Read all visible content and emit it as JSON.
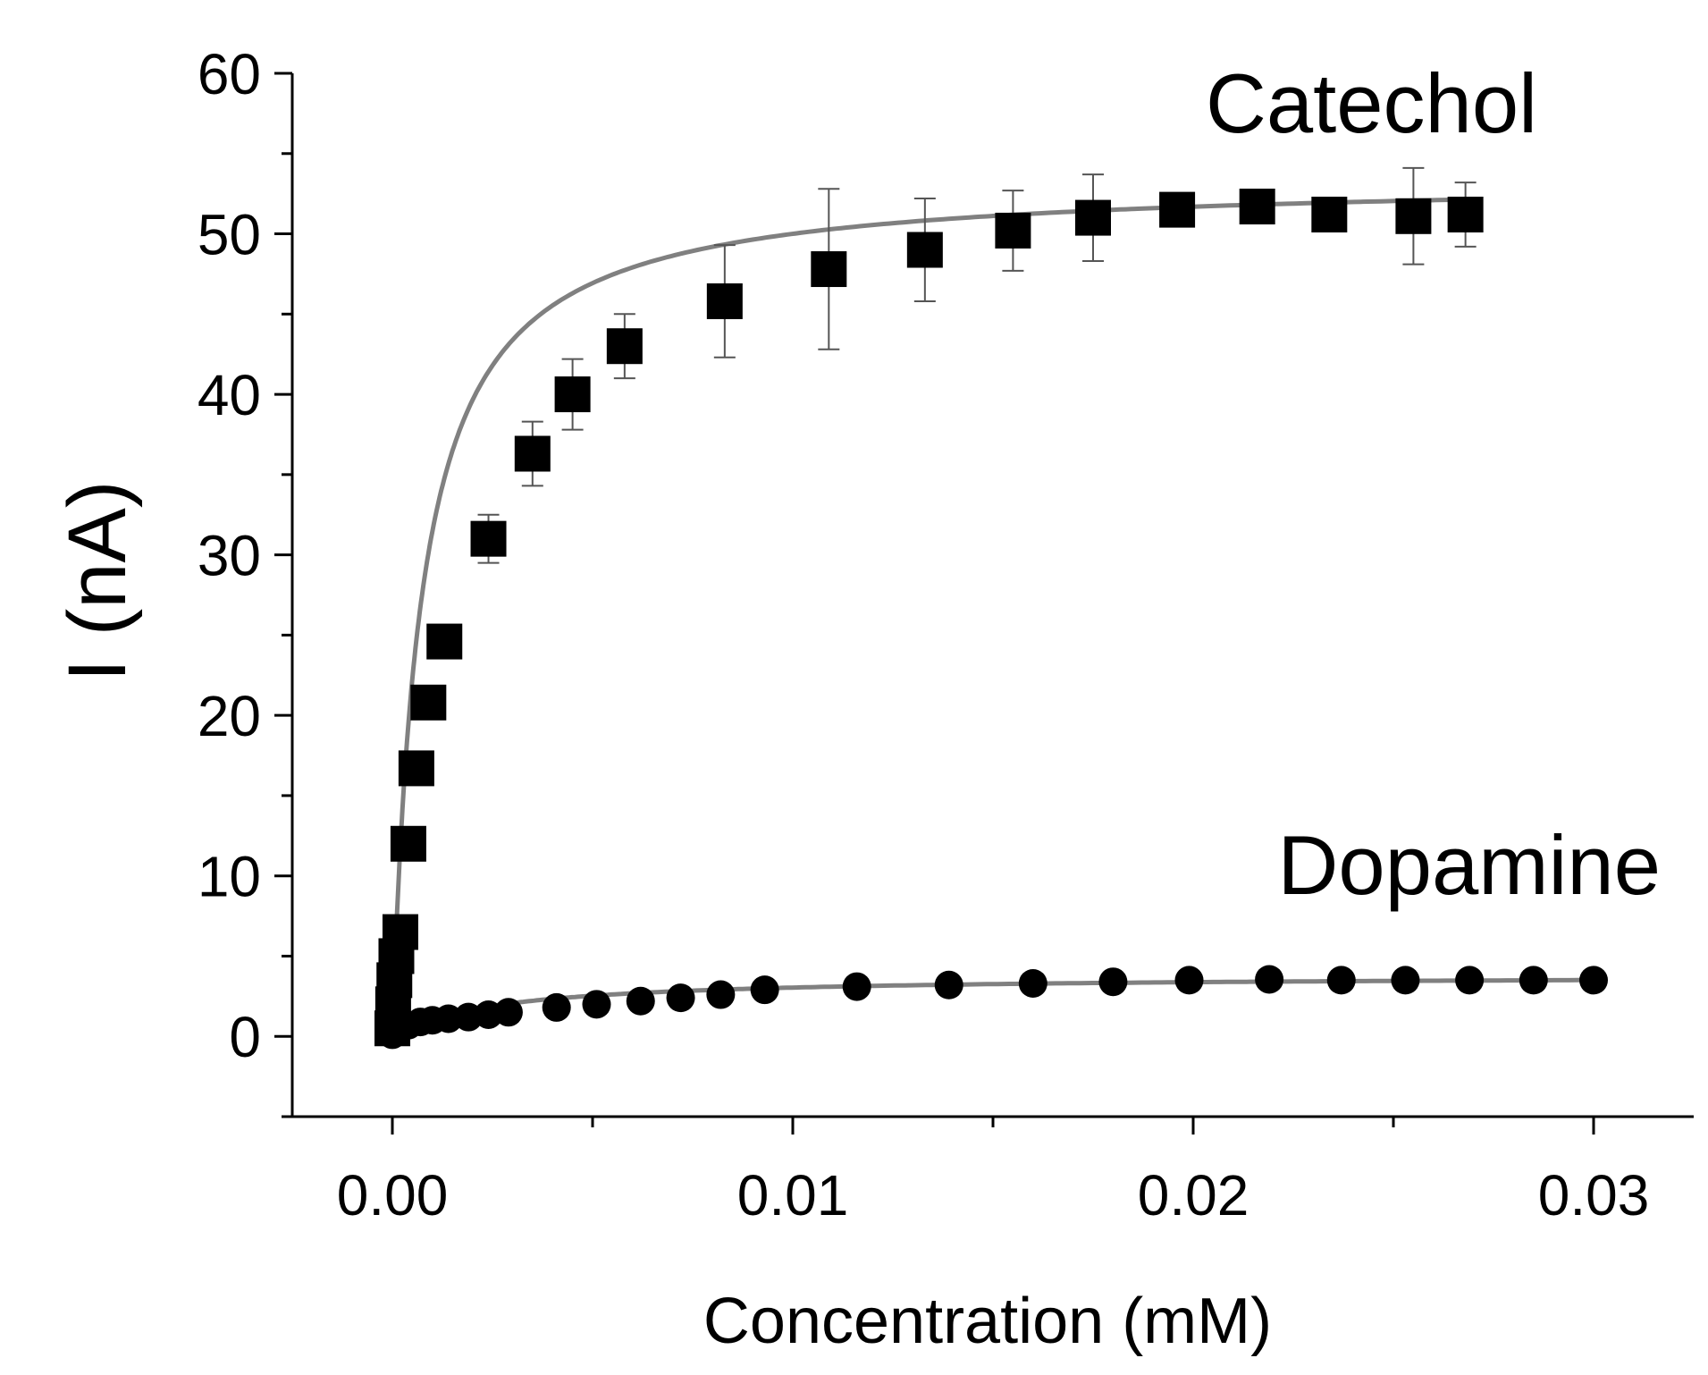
{
  "chart_data": {
    "type": "scatter",
    "title": "",
    "xlabel": "Concentration (mM)",
    "ylabel": "I (nA)",
    "xlim": [
      -0.0025,
      0.0325
    ],
    "ylim": [
      -5,
      60
    ],
    "xticks": [
      0.0,
      0.01,
      0.02,
      0.03
    ],
    "xtick_labels": [
      "0.00",
      "0.01",
      "0.02",
      "0.03"
    ],
    "yticks": [
      0,
      10,
      20,
      30,
      40,
      50,
      60
    ],
    "ytick_labels": [
      "0",
      "10",
      "20",
      "30",
      "40",
      "50",
      "60"
    ],
    "grid": false,
    "series": [
      {
        "name": "Catechol",
        "marker": "square",
        "color": "#000000",
        "fit_color": "#808080",
        "fit": {
          "model": "michaelis-menten",
          "imax": 53.5,
          "km": 0.0007
        },
        "x": [
          0.0,
          2e-05,
          5e-05,
          0.0001,
          0.0002,
          0.0004,
          0.0006,
          0.0009,
          0.0013,
          0.0024,
          0.0035,
          0.0045,
          0.0058,
          0.0083,
          0.0109,
          0.0133,
          0.0155,
          0.0175,
          0.0196,
          0.0216,
          0.0234,
          0.0255,
          0.0268
        ],
        "y": [
          0.5,
          2.0,
          3.5,
          5.0,
          6.5,
          12.0,
          16.7,
          20.8,
          24.6,
          31.0,
          36.3,
          40.0,
          43.0,
          45.8,
          47.8,
          49.0,
          50.2,
          51.0,
          51.5,
          51.7,
          51.2,
          51.1,
          51.2
        ],
        "yerr": [
          0,
          0,
          0,
          0,
          0,
          0,
          0,
          0,
          1.0,
          1.5,
          2.0,
          2.2,
          2.0,
          3.5,
          5.0,
          3.2,
          2.5,
          2.7,
          0,
          0,
          0,
          3.0,
          2.0
        ]
      },
      {
        "name": "Dopamine",
        "marker": "circle",
        "color": "#000000",
        "fit_color": "#808080",
        "fit": {
          "model": "michaelis-menten",
          "imax": 3.8,
          "km": 0.0025
        },
        "x": [
          0.0,
          0.0001,
          0.0002,
          0.0004,
          0.0007,
          0.001,
          0.0014,
          0.0019,
          0.0024,
          0.0029,
          0.0041,
          0.0051,
          0.0062,
          0.0072,
          0.0082,
          0.0093,
          0.0116,
          0.0139,
          0.016,
          0.018,
          0.0199,
          0.0219,
          0.0237,
          0.0253,
          0.0269,
          0.0285,
          0.03
        ],
        "y": [
          0.1,
          0.3,
          0.5,
          0.7,
          0.9,
          1.0,
          1.1,
          1.2,
          1.35,
          1.5,
          1.8,
          2.0,
          2.2,
          2.4,
          2.6,
          2.9,
          3.1,
          3.2,
          3.3,
          3.4,
          3.5,
          3.55,
          3.5,
          3.5,
          3.5,
          3.5,
          3.5
        ]
      }
    ]
  }
}
